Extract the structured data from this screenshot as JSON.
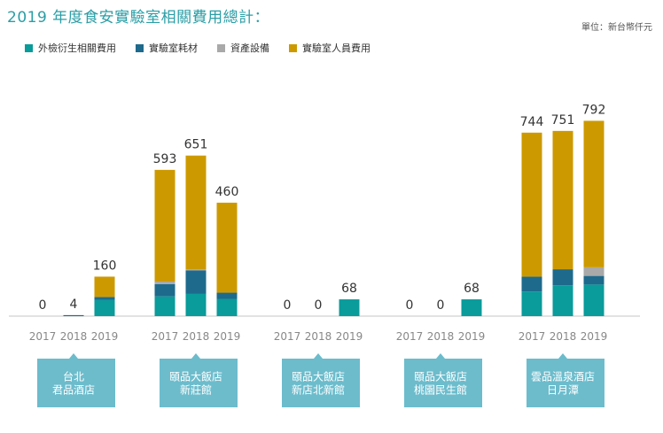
{
  "title": "2019 年度食安實驗室相關費用總計：",
  "unit": "單位：新台幣仟元",
  "legend": [
    {
      "label": "外檢衍生相關費用",
      "color": "#0a9b9b"
    },
    {
      "label": "實驗室耗材",
      "color": "#1e6a8c"
    },
    {
      "label": "資產設備",
      "color": "#a9a9a9"
    },
    {
      "label": "實驗室人員費用",
      "color": "#cc9a00"
    }
  ],
  "chart_data": {
    "type": "bar",
    "stacked": true,
    "grid": false,
    "legend_position": "top-left",
    "groups": [
      {
        "name": "台北\n君品酒店",
        "years": [
          "2017",
          "2018",
          "2019"
        ],
        "totals": [
          0,
          4,
          160
        ]
      },
      {
        "name": "頤品大飯店\n新莊館",
        "years": [
          "2017",
          "2018",
          "2019"
        ],
        "totals": [
          593,
          651,
          460
        ]
      },
      {
        "name": "頤品大飯店\n新店北新館",
        "years": [
          "2017",
          "2018",
          "2019"
        ],
        "totals": [
          0,
          0,
          68
        ]
      },
      {
        "name": "頤品大飯店\n桃園民生館",
        "years": [
          "2017",
          "2018",
          "2019"
        ],
        "totals": [
          0,
          0,
          68
        ]
      },
      {
        "name": "雲品溫泉酒店\n日月潭",
        "years": [
          "2017",
          "2018",
          "2019"
        ],
        "totals": [
          744,
          751,
          792
        ]
      }
    ],
    "series": [
      {
        "name": "外檢衍生相關費用",
        "color": "#0a9b9b",
        "values": [
          [
            0,
            0,
            65
          ],
          [
            80,
            90,
            70
          ],
          [
            0,
            0,
            68
          ],
          [
            0,
            0,
            68
          ],
          [
            100,
            125,
            128
          ]
        ]
      },
      {
        "name": "實驗室耗材",
        "color": "#1e6a8c",
        "values": [
          [
            0,
            4,
            13
          ],
          [
            50,
            95,
            25
          ],
          [
            0,
            0,
            0
          ],
          [
            0,
            0,
            0
          ],
          [
            60,
            65,
            35
          ]
        ]
      },
      {
        "name": "資產設備",
        "color": "#a9a9a9",
        "values": [
          [
            0,
            0,
            0
          ],
          [
            10,
            5,
            0
          ],
          [
            0,
            0,
            0
          ],
          [
            0,
            0,
            0
          ],
          [
            0,
            0,
            35
          ]
        ]
      },
      {
        "name": "實驗室人員費用",
        "color": "#cc9a00",
        "values": [
          [
            0,
            0,
            82
          ],
          [
            453,
            461,
            365
          ],
          [
            0,
            0,
            0
          ],
          [
            0,
            0,
            0
          ],
          [
            584,
            561,
            594
          ]
        ]
      }
    ]
  }
}
